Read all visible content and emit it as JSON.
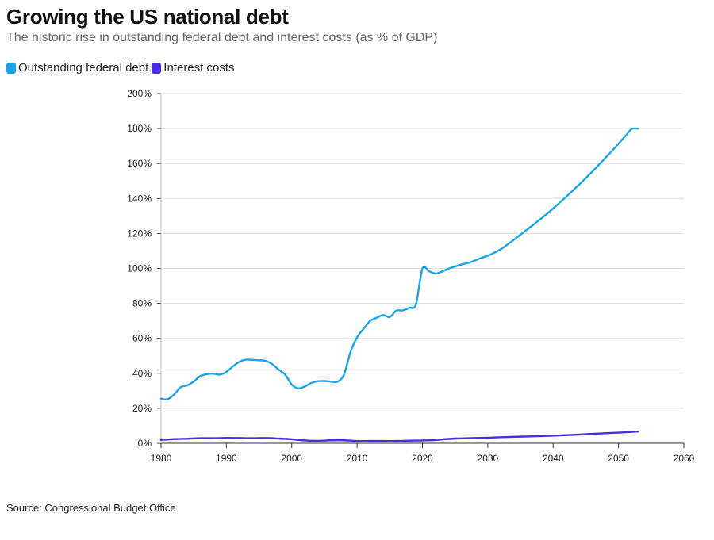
{
  "colors": {
    "debt": "#1aa3e8",
    "interest": "#4b2be3",
    "grid": "#dddddd",
    "axis": "#333333"
  },
  "chart_data": {
    "type": "line",
    "title": "Growing the US national debt",
    "subtitle": "The historic rise in outstanding federal debt and interest costs (as % of GDP)",
    "source": "Source: Congressional Budget Office",
    "xlabel": "",
    "ylabel": "",
    "xlim": [
      1980,
      2060
    ],
    "ylim": [
      0,
      200
    ],
    "xticks": [
      1980,
      1990,
      2000,
      2010,
      2020,
      2030,
      2040,
      2050,
      2060
    ],
    "yticks": [
      0,
      20,
      40,
      60,
      80,
      100,
      120,
      140,
      160,
      180,
      200
    ],
    "y_tick_suffix": "%",
    "grid": true,
    "legend_position": "top-left",
    "series": [
      {
        "name": "Outstanding federal debt",
        "color_key": "debt",
        "x": [
          1980,
          1981,
          1982,
          1983,
          1984,
          1985,
          1986,
          1987,
          1988,
          1989,
          1990,
          1991,
          1992,
          1993,
          1994,
          1995,
          1996,
          1997,
          1998,
          1999,
          2000,
          2001,
          2002,
          2003,
          2004,
          2005,
          2006,
          2007,
          2008,
          2009,
          2010,
          2011,
          2012,
          2013,
          2014,
          2015,
          2016,
          2017,
          2018,
          2019,
          2020,
          2021,
          2022,
          2023,
          2024,
          2025,
          2026,
          2027,
          2028,
          2029,
          2030,
          2031,
          2032,
          2033,
          2034,
          2035,
          2036,
          2037,
          2038,
          2039,
          2040,
          2041,
          2042,
          2043,
          2044,
          2045,
          2046,
          2047,
          2048,
          2049,
          2050,
          2051,
          2052,
          2053
        ],
        "values": [
          25.5,
          25.2,
          27.9,
          32.1,
          33.1,
          35.3,
          38.4,
          39.5,
          39.8,
          39.3,
          40.8,
          44.0,
          46.6,
          47.8,
          47.7,
          47.5,
          47.1,
          45.3,
          42.1,
          39.2,
          33.6,
          31.4,
          32.5,
          34.5,
          35.5,
          35.6,
          35.3,
          35.2,
          39.3,
          52.3,
          60.6,
          65.5,
          70.0,
          71.8,
          73.3,
          72.2,
          75.8,
          76.0,
          77.5,
          79.4,
          99.8,
          98.4,
          97.0,
          98.2,
          99.9,
          101.1,
          102.3,
          103.2,
          104.5,
          106.0,
          107.3,
          109.0,
          111.0,
          113.6,
          116.4,
          119.3,
          122.2,
          125.1,
          128.1,
          131.1,
          134.3,
          137.6,
          141.0,
          144.5,
          148.0,
          151.7,
          155.4,
          159.3,
          163.2,
          167.2,
          171.3,
          175.5,
          179.7,
          180.0
        ]
      },
      {
        "name": "Interest costs",
        "color_key": "interest",
        "x": [
          1980,
          1982,
          1984,
          1986,
          1988,
          1990,
          1992,
          1994,
          1996,
          1998,
          2000,
          2002,
          2004,
          2006,
          2008,
          2010,
          2012,
          2014,
          2016,
          2018,
          2020,
          2022,
          2024,
          2026,
          2028,
          2030,
          2032,
          2035,
          2038,
          2041,
          2044,
          2047,
          2050,
          2053
        ],
        "values": [
          1.9,
          2.4,
          2.6,
          2.9,
          2.9,
          3.1,
          3.0,
          2.9,
          3.0,
          2.7,
          2.3,
          1.6,
          1.4,
          1.7,
          1.7,
          1.3,
          1.3,
          1.3,
          1.3,
          1.5,
          1.6,
          1.9,
          2.5,
          2.8,
          3.0,
          3.2,
          3.5,
          3.8,
          4.1,
          4.5,
          5.0,
          5.6,
          6.1,
          6.7
        ]
      }
    ]
  }
}
